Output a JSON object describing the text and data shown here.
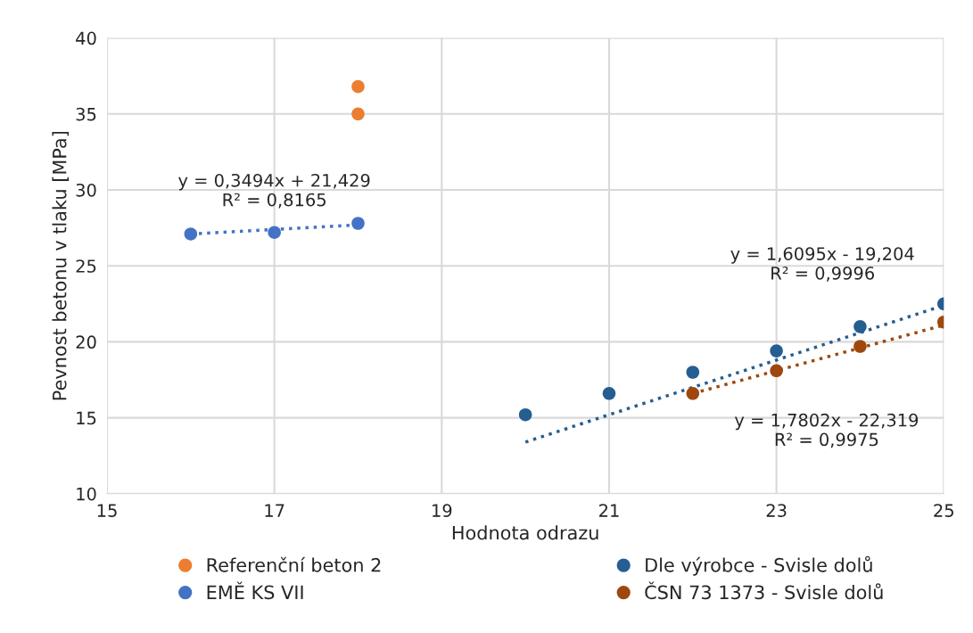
{
  "chart_data": {
    "type": "scatter",
    "xlabel": "Hodnota odrazu",
    "ylabel": "Pevnost betonu v tlaku [MPa]",
    "xlim": [
      15,
      25
    ],
    "xticks": [
      15,
      17,
      19,
      21,
      23,
      25
    ],
    "ylim": [
      10,
      40
    ],
    "yticks": [
      10,
      15,
      20,
      25,
      30,
      35,
      40
    ],
    "grid": true,
    "legend": "bottom",
    "marker": "circle",
    "series": [
      {
        "name": "Referenční beton 2",
        "color": "#ed7d31",
        "x": [
          18,
          18
        ],
        "values": [
          36.8,
          35.0
        ]
      },
      {
        "name": "EMĚ KS VII",
        "color": "#4472c4",
        "x": [
          16,
          17,
          18
        ],
        "values": [
          27.1,
          27.2,
          27.8
        ]
      },
      {
        "name": "Dle výrobce - Svisle dolů",
        "color": "#255e91",
        "x": [
          20,
          21,
          22,
          23,
          24,
          25
        ],
        "values": [
          15.2,
          16.6,
          18.0,
          19.4,
          21.0,
          22.5
        ]
      },
      {
        "name": "ČSN 73 1373 - Svisle dolů",
        "color": "#9e480e",
        "x": [
          22,
          23,
          24,
          25
        ],
        "values": [
          16.6,
          18.1,
          19.7,
          21.3
        ]
      },
      {
        "type": "line",
        "marker": "none",
        "line_style": "dotted",
        "color": "#4472c4",
        "x": [
          16,
          18
        ],
        "values": [
          27.1,
          27.7
        ]
      },
      {
        "type": "line",
        "marker": "none",
        "line_style": "dotted",
        "color": "#255e91",
        "x": [
          20,
          25
        ],
        "values": [
          13.4,
          22.4
        ]
      },
      {
        "type": "line",
        "marker": "none",
        "line_style": "dotted",
        "color": "#9e480e",
        "x": [
          22,
          25
        ],
        "values": [
          16.6,
          21.1
        ]
      }
    ],
    "annotations": [
      "y = 0,3494x + 21,429\nR² = 0,8165",
      "y = 1,6095x - 19,204\nR² = 0,9996",
      "y = 1,7802x - 22,319\nR² = 0,9975"
    ]
  }
}
